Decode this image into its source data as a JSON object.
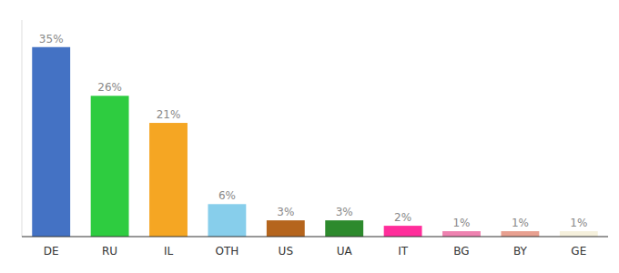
{
  "chart_data": {
    "type": "bar",
    "categories": [
      "DE",
      "RU",
      "IL",
      "OTH",
      "US",
      "UA",
      "IT",
      "BG",
      "BY",
      "GE"
    ],
    "values": [
      35,
      26,
      21,
      6,
      3,
      3,
      2,
      1,
      1,
      1
    ],
    "value_labels": [
      "35%",
      "26%",
      "21%",
      "6%",
      "3%",
      "3%",
      "2%",
      "1%",
      "1%",
      "1%"
    ],
    "colors": [
      "#4472c4",
      "#2ecc40",
      "#f5a623",
      "#87ceeb",
      "#b5651d",
      "#2d8a2d",
      "#ff2d9b",
      "#ee82b0",
      "#e8a090",
      "#f5f0dc"
    ],
    "ylim": [
      0,
      40
    ],
    "data_labels": true,
    "tick_labels": "x",
    "grid": false
  }
}
